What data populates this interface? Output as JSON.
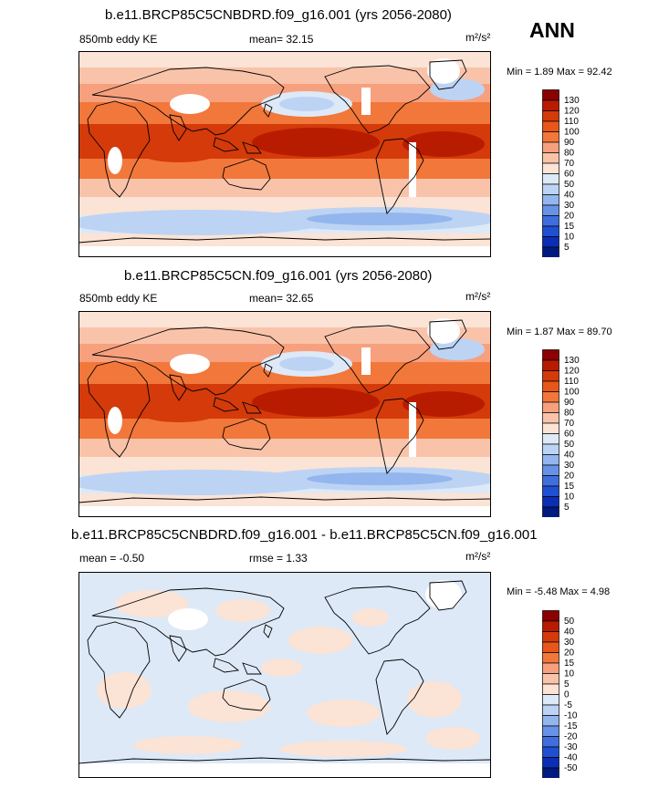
{
  "season": "ANN",
  "units": "m²/s²",
  "chart_data": [
    {
      "type": "heatmap",
      "title": "b.e11.BRCP85C5CNBDRD.f09_g16.001 (yrs 2056-2080)",
      "left_label": "850mb eddy KE",
      "center_label": "mean=  32.15",
      "right_label": "m²/s²",
      "min_max_label": "Min =   1.89 Max =  92.42",
      "mean": 32.15,
      "min": 1.89,
      "max": 92.42,
      "colorbar": {
        "levels": [
          "130",
          "120",
          "110",
          "100",
          "90",
          "80",
          "70",
          "60",
          "50",
          "40",
          "30",
          "20",
          "15",
          "10",
          "5"
        ],
        "colors": [
          "#8b0000",
          "#b81c00",
          "#d43a0a",
          "#e8561a",
          "#f2773a",
          "#f7a07e",
          "#f9c3aa",
          "#fbe3d5",
          "#dde9f7",
          "#bcd3f4",
          "#93b6ee",
          "#6892e6",
          "#3f6ede",
          "#1f4fd2",
          "#0a2fb5",
          "#001a80"
        ]
      },
      "map_style": "diff_field"
    },
    {
      "type": "heatmap",
      "title": "b.e11.BRCP85C5CN.f09_g16.001 (yrs 2056-2080)",
      "left_label": "850mb eddy KE",
      "center_label": "mean=  32.65",
      "right_label": "m²/s²",
      "min_max_label": "Min =   1.87 Max =  89.70",
      "mean": 32.65,
      "min": 1.87,
      "max": 89.7,
      "colorbar": {
        "levels": [
          "130",
          "120",
          "110",
          "100",
          "90",
          "80",
          "70",
          "60",
          "50",
          "40",
          "30",
          "20",
          "15",
          "10",
          "5"
        ],
        "colors": [
          "#8b0000",
          "#b81c00",
          "#d43a0a",
          "#e8561a",
          "#f2773a",
          "#f7a07e",
          "#f9c3aa",
          "#fbe3d5",
          "#dde9f7",
          "#bcd3f4",
          "#93b6ee",
          "#6892e6",
          "#3f6ede",
          "#1f4fd2",
          "#0a2fb5",
          "#001a80"
        ]
      },
      "map_style": "field"
    },
    {
      "type": "heatmap",
      "title": "b.e11.BRCP85C5CNBDRD.f09_g16.001 - b.e11.BRCP85C5CN.f09_g16.001",
      "left_label": "mean =  -0.50",
      "center_label": "rmse =   1.33",
      "right_label": "m²/s²",
      "min_max_label": "Min =  -5.48 Max =   4.98",
      "mean": -0.5,
      "rmse": 1.33,
      "min": -5.48,
      "max": 4.98,
      "colorbar": {
        "levels": [
          "50",
          "40",
          "30",
          "20",
          "15",
          "10",
          "5",
          "0",
          "-5",
          "-10",
          "-15",
          "-20",
          "-30",
          "-40",
          "-50"
        ],
        "colors": [
          "#8b0000",
          "#b81c00",
          "#d43a0a",
          "#e8561a",
          "#f2773a",
          "#f7a07e",
          "#f9c3aa",
          "#fbe3d5",
          "#dde9f7",
          "#bcd3f4",
          "#93b6ee",
          "#6892e6",
          "#3f6ede",
          "#1f4fd2",
          "#0a2fb5",
          "#001a80"
        ]
      },
      "map_style": "difference"
    }
  ]
}
